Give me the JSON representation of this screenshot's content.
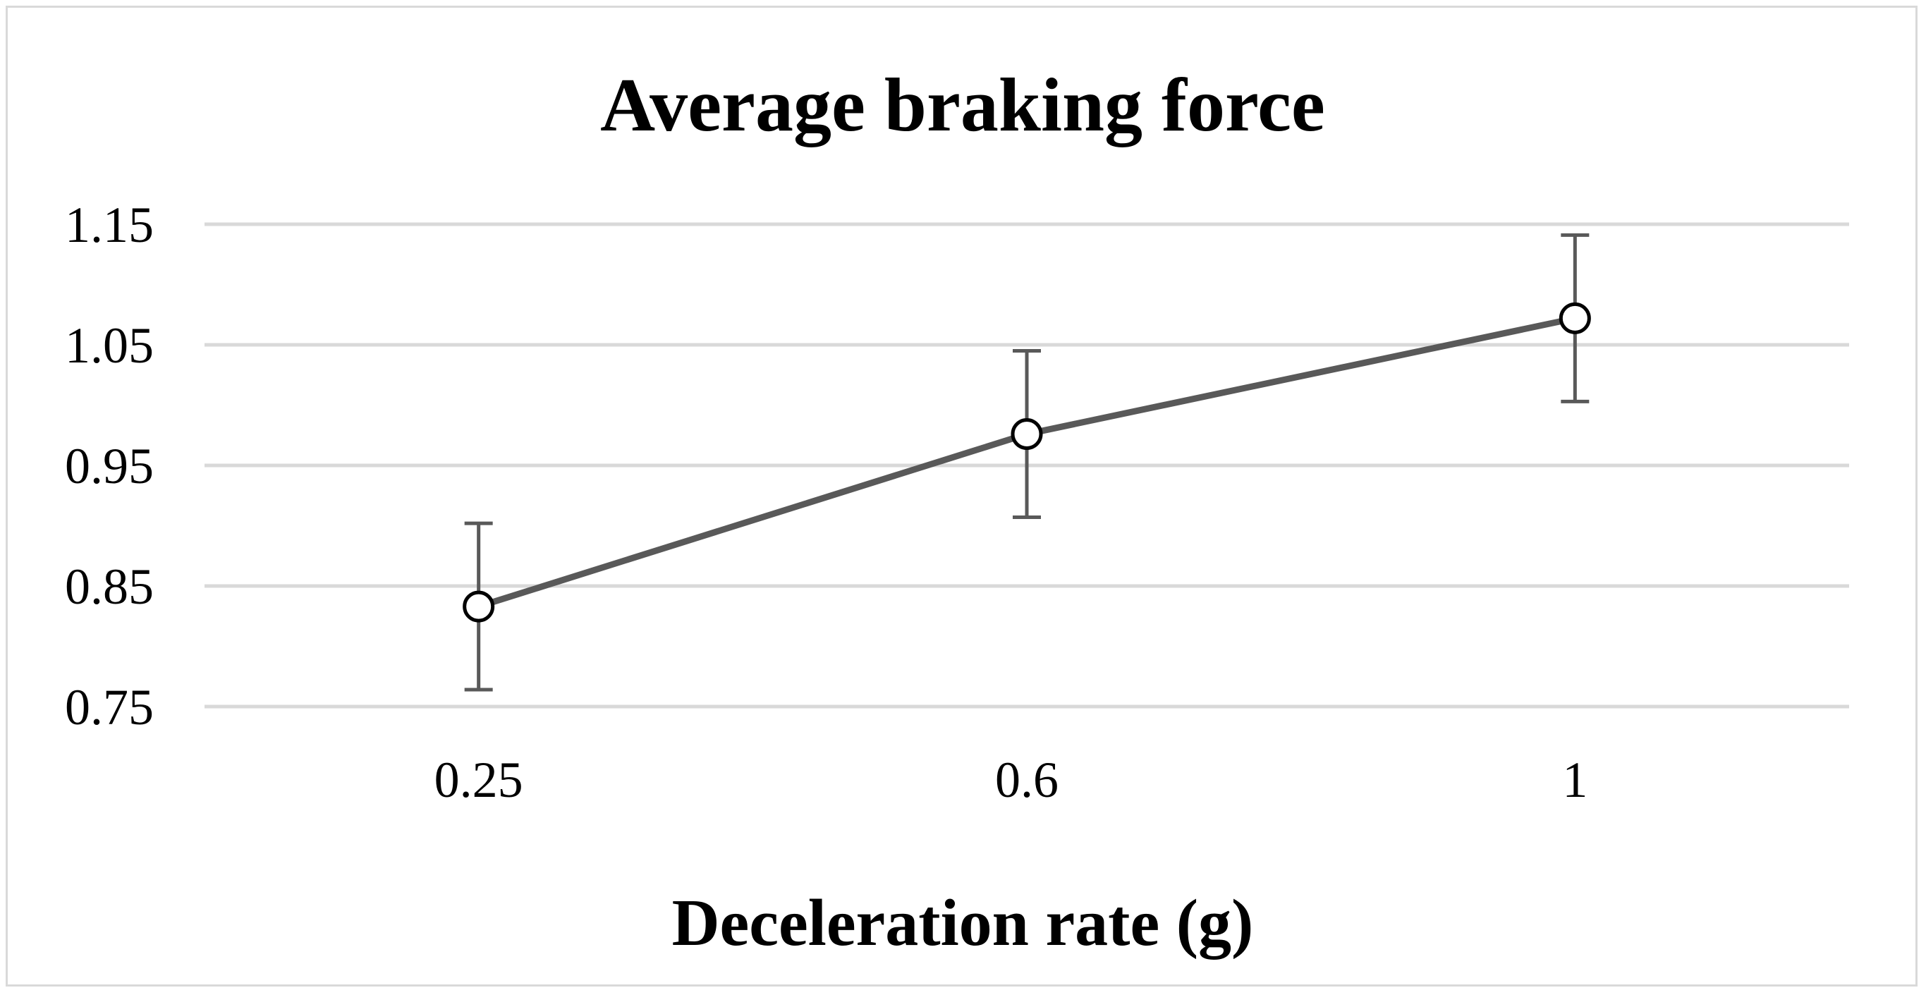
{
  "chart_data": {
    "type": "line",
    "title": "Average braking force",
    "xlabel": "Deceleration rate (g)",
    "ylabel": "",
    "categories": [
      "0.25",
      "0.6",
      "1"
    ],
    "series": [
      {
        "name": "Average braking force",
        "values": [
          0.833,
          0.976,
          1.072
        ],
        "error": [
          0.069,
          0.069,
          0.069
        ],
        "marker": "circle"
      }
    ],
    "ylim": [
      0.75,
      1.15
    ],
    "yticks": [
      "0.75",
      "0.85",
      "0.95",
      "1.05",
      "1.15"
    ],
    "grid": true,
    "legend": "none",
    "colors": {
      "line": "#595959",
      "grid": "#d9d9d9",
      "marker": "#000000",
      "border": "#d9d9d9"
    }
  }
}
